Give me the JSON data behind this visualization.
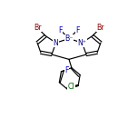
{
  "bg_color": "#ffffff",
  "bond_color": "#000000",
  "atom_colors": {
    "Br": "#8B0000",
    "F": "#0000CD",
    "N": "#00008B",
    "B": "#00008B",
    "Cl": "#006400",
    "C": "#000000"
  },
  "figsize": [
    1.52,
    1.52
  ],
  "dpi": 100
}
